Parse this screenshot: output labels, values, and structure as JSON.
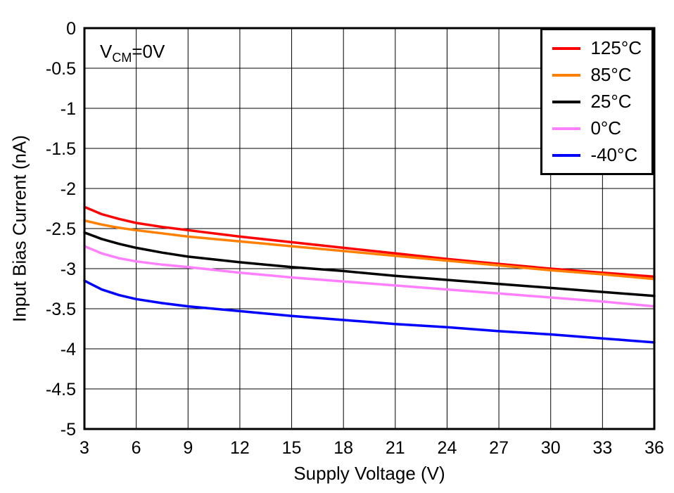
{
  "chart_data": {
    "type": "line",
    "title": "",
    "xlabel": "Supply Voltage (V)",
    "ylabel": "Input Bias Current (nA)",
    "xlim": [
      3,
      36
    ],
    "ylim": [
      -5,
      0
    ],
    "xticks": [
      3,
      6,
      9,
      12,
      15,
      18,
      21,
      24,
      27,
      30,
      33,
      36
    ],
    "yticks": [
      0,
      -0.5,
      -1,
      -1.5,
      -2,
      -2.5,
      -3,
      -3.5,
      -4,
      -4.5,
      -5
    ],
    "grid": true,
    "legend_position": "top-right",
    "annotation": {
      "pre": "V",
      "sub": "CM",
      "post": "=0V"
    },
    "x": [
      3,
      4,
      5,
      6,
      7.5,
      9,
      12,
      15,
      18,
      21,
      24,
      27,
      30,
      33,
      36
    ],
    "series": [
      {
        "name": "125°C",
        "color": "#ff0000",
        "values": [
          -2.23,
          -2.32,
          -2.38,
          -2.43,
          -2.48,
          -2.52,
          -2.6,
          -2.67,
          -2.74,
          -2.81,
          -2.88,
          -2.94,
          -3.0,
          -3.05,
          -3.1
        ]
      },
      {
        "name": "85°C",
        "color": "#ff8000",
        "values": [
          -2.4,
          -2.45,
          -2.49,
          -2.52,
          -2.56,
          -2.6,
          -2.66,
          -2.72,
          -2.78,
          -2.84,
          -2.9,
          -2.96,
          -3.02,
          -3.07,
          -3.13
        ]
      },
      {
        "name": "25°C",
        "color": "#000000",
        "values": [
          -2.55,
          -2.63,
          -2.69,
          -2.74,
          -2.8,
          -2.85,
          -2.92,
          -2.98,
          -3.03,
          -3.09,
          -3.14,
          -3.19,
          -3.24,
          -3.29,
          -3.34
        ]
      },
      {
        "name": "0°C",
        "color": "#ff80ff",
        "values": [
          -2.72,
          -2.81,
          -2.87,
          -2.91,
          -2.95,
          -2.98,
          -3.05,
          -3.11,
          -3.16,
          -3.21,
          -3.26,
          -3.31,
          -3.36,
          -3.41,
          -3.47
        ]
      },
      {
        "name": "-40°C",
        "color": "#0000ff",
        "values": [
          -3.15,
          -3.26,
          -3.33,
          -3.38,
          -3.43,
          -3.47,
          -3.53,
          -3.59,
          -3.64,
          -3.69,
          -3.73,
          -3.78,
          -3.82,
          -3.87,
          -3.92
        ]
      }
    ]
  }
}
